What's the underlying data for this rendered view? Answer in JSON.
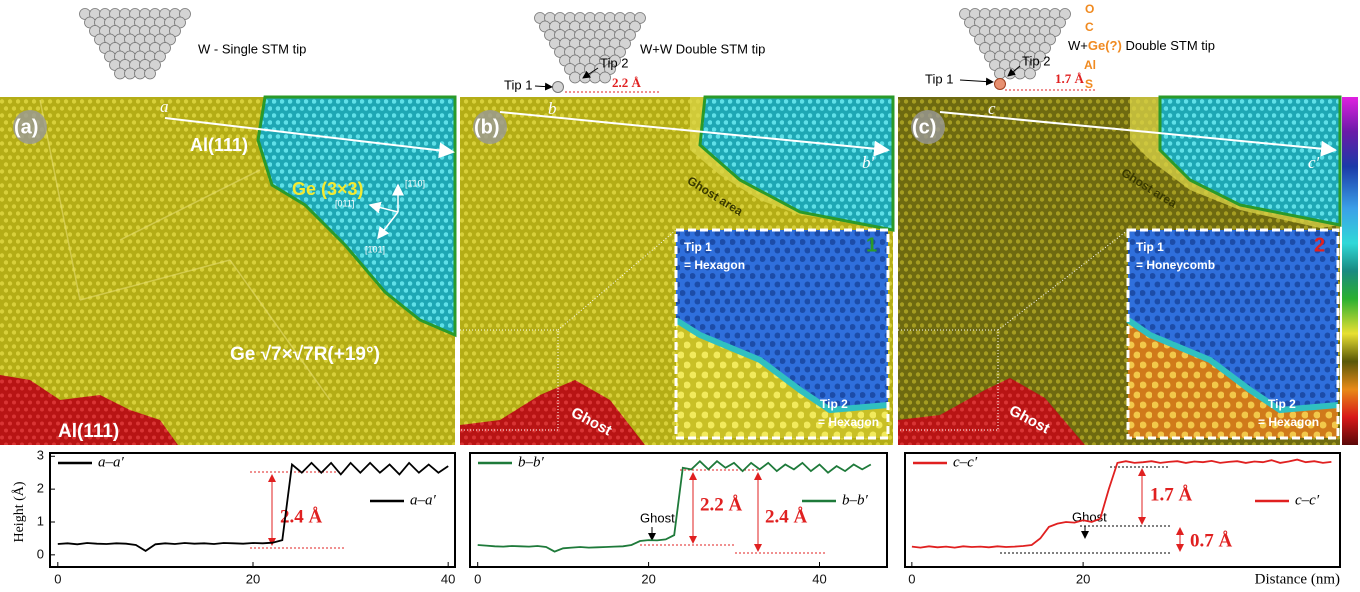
{
  "tips": [
    {
      "label": "W - Single STM tip"
    },
    {
      "tip1": "Tip 1",
      "tip2": "Tip 2",
      "gap": "2.2 Å",
      "label": "W+W Double STM tip"
    },
    {
      "tip1": "Tip 1",
      "tip2": "Tip 2",
      "gap": "1.7 Å",
      "above": [
        "O",
        "C"
      ],
      "label_prefix": "W+",
      "element": "Ge(?)",
      "label_suffix": " Double STM tip",
      "below": [
        "Al",
        "S"
      ]
    }
  ],
  "images": [
    {
      "panel": "(a)",
      "start": "a",
      "al_top": "Al(111)",
      "ge33": "Ge (3×3)",
      "ge7": "Ge √7×√7R(+19°)",
      "al_bottom": "Al(111)",
      "dirs": [
        "[1̄10]",
        "[011̄]",
        "[1̄01]"
      ]
    },
    {
      "panel": "(b)",
      "start": "b",
      "end": "b′",
      "ghost_area": "Ghost area",
      "ghost": "Ghost",
      "inset_number": "1",
      "tip1": "Tip 1",
      "tip1_shape": "= Hexagon",
      "tip2": "Tip 2",
      "tip2_shape": "= Hexagon"
    },
    {
      "panel": "(c)",
      "start": "c",
      "end": "c′",
      "ghost_area": "Ghost area",
      "ghost": "Ghost",
      "inset_number": "2",
      "tip1": "Tip 1",
      "tip1_shape": "= Honeycomb",
      "tip2": "Tip 2",
      "tip2_shape": "= Hexagon"
    }
  ],
  "chart_data": [
    {
      "type": "line",
      "ylabel": "Height (Å)",
      "x": [
        0,
        1,
        2,
        3,
        4,
        5,
        6,
        7,
        8,
        9,
        10,
        11,
        12,
        13,
        14,
        15,
        16,
        17,
        18,
        19,
        20,
        21,
        22,
        23,
        24,
        25,
        26,
        27,
        28,
        29,
        30,
        31,
        32,
        33,
        34,
        35,
        36,
        37,
        38,
        39,
        40
      ],
      "series": [
        {
          "name": "a–a′",
          "color": "#000000",
          "values": [
            0.33,
            0.35,
            0.32,
            0.36,
            0.34,
            0.33,
            0.35,
            0.34,
            0.3,
            0.12,
            0.32,
            0.35,
            0.33,
            0.36,
            0.34,
            0.35,
            0.33,
            0.36,
            0.35,
            0.34,
            0.36,
            0.35,
            0.37,
            0.45,
            2.75,
            2.5,
            2.8,
            2.5,
            2.8,
            2.45,
            2.8,
            2.5,
            2.8,
            2.5,
            2.75,
            2.45,
            2.8,
            2.5,
            2.75,
            2.5,
            2.7
          ]
        }
      ],
      "xlim": [
        -0.8,
        40.7
      ],
      "ylim": [
        -0.37,
        3.1
      ],
      "xticks": [
        0,
        20,
        40
      ],
      "yticks": [
        0,
        1,
        2,
        3
      ],
      "annotations": [
        "2.4 Å"
      ]
    },
    {
      "type": "line",
      "x": [
        0,
        1,
        2,
        3,
        4,
        5,
        6,
        7,
        8,
        9,
        10,
        11,
        12,
        13,
        14,
        15,
        16,
        17,
        18,
        19,
        20,
        21,
        22,
        23,
        24,
        25,
        26,
        27,
        28,
        29,
        30,
        31,
        32,
        33,
        34,
        35,
        36,
        37,
        38,
        39,
        40,
        41,
        42,
        43,
        44,
        45,
        46
      ],
      "series": [
        {
          "name": "b–b′",
          "color": "#1e7a3a",
          "values": [
            0.3,
            0.28,
            0.26,
            0.25,
            0.27,
            0.26,
            0.25,
            0.27,
            0.24,
            0.1,
            0.2,
            0.22,
            0.24,
            0.22,
            0.23,
            0.24,
            0.25,
            0.26,
            0.3,
            0.42,
            0.45,
            0.44,
            0.47,
            0.6,
            2.65,
            2.6,
            2.85,
            2.6,
            2.85,
            2.65,
            2.8,
            2.55,
            2.8,
            2.6,
            2.8,
            2.55,
            2.75,
            2.6,
            2.8,
            2.55,
            2.75,
            2.5,
            2.7,
            2.55,
            2.75,
            2.6,
            2.75
          ]
        }
      ],
      "xlim": [
        -0.9,
        47.9
      ],
      "ylim": [
        -0.37,
        3.1
      ],
      "xticks": [
        0,
        20,
        40
      ],
      "annotations": [
        "Ghost",
        "2.2 Å",
        "2.4 Å"
      ]
    },
    {
      "type": "line",
      "xlabel": "Distance (nm)",
      "x": [
        0,
        1,
        2,
        3,
        4,
        5,
        6,
        7,
        8,
        9,
        10,
        11,
        12,
        13,
        14,
        15,
        16,
        17,
        18,
        19,
        20,
        21,
        22,
        23,
        24,
        25,
        26,
        27,
        28,
        29,
        30,
        31,
        32,
        33,
        34,
        35,
        36,
        37,
        38,
        39,
        40,
        41,
        42,
        43,
        44,
        45,
        46,
        47,
        48,
        49
      ],
      "series": [
        {
          "name": "c–c′",
          "color": "#e02020",
          "values": [
            0.25,
            0.22,
            0.26,
            0.23,
            0.25,
            0.22,
            0.26,
            0.24,
            0.25,
            0.23,
            0.26,
            0.24,
            0.25,
            0.27,
            0.3,
            0.5,
            0.85,
            0.95,
            1.0,
            0.98,
            1.05,
            1.0,
            1.1,
            2.0,
            2.8,
            2.85,
            2.8,
            2.82,
            2.85,
            2.8,
            2.83,
            2.85,
            2.8,
            2.84,
            2.82,
            2.86,
            2.8,
            2.83,
            2.85,
            2.8,
            2.84,
            2.82,
            2.88,
            2.8,
            2.84,
            2.9,
            2.82,
            2.85,
            2.8,
            2.83
          ]
        }
      ],
      "xlim": [
        -0.8,
        50
      ],
      "ylim": [
        -0.37,
        3.1
      ],
      "xticks": [
        0,
        20
      ],
      "annotations": [
        "Ghost",
        "1.7 Å",
        "0.7 Å"
      ]
    }
  ]
}
